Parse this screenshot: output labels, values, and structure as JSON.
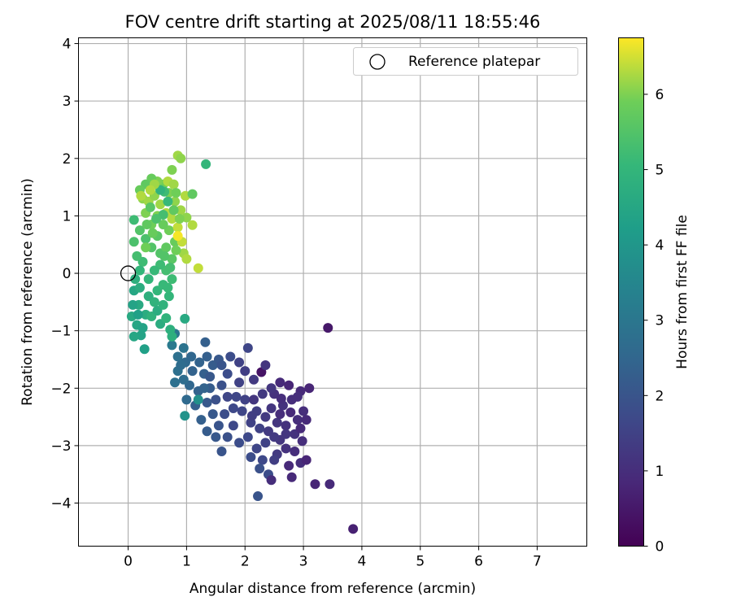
{
  "chart_data": {
    "type": "scatter",
    "title": "FOV centre drift starting at 2025/08/11 18:55:46",
    "xlabel": "Angular distance from reference (arcmin)",
    "ylabel": "Rotation from reference (arcmin)",
    "xlim": [
      -0.85,
      7.85
    ],
    "ylim": [
      -4.75,
      4.1
    ],
    "xticks": [
      0,
      1,
      2,
      3,
      4,
      5,
      6,
      7
    ],
    "yticks": [
      -4,
      -3,
      -2,
      -1,
      0,
      1,
      2,
      3,
      4
    ],
    "grid": true,
    "legend": {
      "placement": "top-right",
      "entries": [
        "Reference platepar"
      ]
    },
    "reference_point": {
      "x": 0.0,
      "y": 0.0,
      "label": "Reference platepar"
    },
    "colorbar": {
      "label": "Hours from first FF file",
      "colormap": "viridis",
      "range": [
        0,
        6.75
      ],
      "ticks": [
        0,
        1,
        2,
        3,
        4,
        5,
        6
      ]
    },
    "points": [
      [
        3.85,
        -4.45,
        0.7
      ],
      [
        3.42,
        -0.95,
        0.5
      ],
      [
        3.2,
        -3.67,
        0.8
      ],
      [
        3.45,
        -3.67,
        0.9
      ],
      [
        2.28,
        -1.72,
        0.4
      ],
      [
        2.22,
        -3.88,
        2.0
      ],
      [
        2.98,
        -2.92,
        1.0
      ],
      [
        2.95,
        -3.3,
        1.0
      ],
      [
        2.75,
        -3.35,
        0.9
      ],
      [
        2.85,
        -3.1,
        1.0
      ],
      [
        2.7,
        -3.05,
        1.1
      ],
      [
        2.6,
        -2.9,
        1.2
      ],
      [
        2.9,
        -2.55,
        1.0
      ],
      [
        3.0,
        -2.4,
        1.0
      ],
      [
        2.95,
        -2.05,
        0.9
      ],
      [
        2.8,
        -2.2,
        1.0
      ],
      [
        2.75,
        -1.95,
        0.8
      ],
      [
        2.65,
        -2.3,
        1.1
      ],
      [
        2.5,
        -2.1,
        1.1
      ],
      [
        2.45,
        -2.35,
        1.2
      ],
      [
        2.55,
        -2.6,
        1.2
      ],
      [
        2.4,
        -2.75,
        1.3
      ],
      [
        2.35,
        -2.5,
        1.3
      ],
      [
        2.2,
        -2.4,
        1.4
      ],
      [
        2.3,
        -2.1,
        1.3
      ],
      [
        2.15,
        -1.85,
        1.3
      ],
      [
        2.0,
        -1.7,
        1.4
      ],
      [
        2.05,
        -1.3,
        1.6
      ],
      [
        1.9,
        -1.9,
        1.5
      ],
      [
        1.85,
        -2.15,
        1.6
      ],
      [
        1.95,
        -2.4,
        1.6
      ],
      [
        2.1,
        -2.6,
        1.5
      ],
      [
        2.05,
        -2.85,
        1.7
      ],
      [
        2.2,
        -3.05,
        1.6
      ],
      [
        2.3,
        -3.25,
        1.7
      ],
      [
        2.4,
        -3.5,
        1.8
      ],
      [
        2.25,
        -3.4,
        1.9
      ],
      [
        2.55,
        -3.15,
        1.3
      ],
      [
        2.7,
        -2.65,
        1.1
      ],
      [
        2.85,
        -2.8,
        1.1
      ],
      [
        2.6,
        -1.9,
        0.9
      ],
      [
        2.35,
        -1.6,
        1.2
      ],
      [
        1.75,
        -1.45,
        1.8
      ],
      [
        1.7,
        -1.75,
        1.8
      ],
      [
        1.6,
        -1.95,
        1.9
      ],
      [
        1.5,
        -2.2,
        1.9
      ],
      [
        1.65,
        -2.45,
        1.8
      ],
      [
        1.8,
        -2.65,
        1.7
      ],
      [
        1.7,
        -2.85,
        1.9
      ],
      [
        1.9,
        -2.95,
        1.8
      ],
      [
        1.55,
        -2.65,
        2.0
      ],
      [
        1.45,
        -2.45,
        2.1
      ],
      [
        1.35,
        -2.25,
        2.1
      ],
      [
        1.4,
        -2.0,
        2.2
      ],
      [
        1.3,
        -1.75,
        2.3
      ],
      [
        1.45,
        -1.6,
        2.2
      ],
      [
        1.55,
        -1.5,
        2.1
      ],
      [
        1.35,
        -1.45,
        2.3
      ],
      [
        1.22,
        -1.55,
        2.4
      ],
      [
        1.1,
        -1.7,
        2.4
      ],
      [
        1.05,
        -1.95,
        2.5
      ],
      [
        1.2,
        -2.05,
        2.4
      ],
      [
        1.15,
        -2.3,
        2.3
      ],
      [
        1.0,
        -2.2,
        2.6
      ],
      [
        0.95,
        -1.85,
        2.7
      ],
      [
        0.85,
        -1.7,
        2.8
      ],
      [
        0.85,
        -1.45,
        2.8
      ],
      [
        0.95,
        -1.3,
        2.9
      ],
      [
        0.8,
        -1.05,
        3.0
      ],
      [
        0.75,
        -1.25,
        3.1
      ],
      [
        0.8,
        -1.9,
        2.8
      ],
      [
        1.32,
        -1.2,
        2.3
      ],
      [
        0.98,
        -1.55,
        2.6
      ],
      [
        1.08,
        -1.45,
        2.5
      ],
      [
        0.9,
        -1.6,
        2.7
      ],
      [
        1.25,
        -2.55,
        2.3
      ],
      [
        1.35,
        -2.75,
        2.2
      ],
      [
        1.5,
        -2.85,
        2.1
      ],
      [
        1.6,
        -3.1,
        2.0
      ],
      [
        2.1,
        -3.2,
        1.8
      ],
      [
        2.45,
        -3.6,
        1.0
      ],
      [
        2.8,
        -3.55,
        0.9
      ],
      [
        3.05,
        -3.25,
        0.8
      ],
      [
        2.6,
        -2.45,
        1.0
      ],
      [
        2.45,
        -2.0,
        1.2
      ],
      [
        2.95,
        -2.7,
        0.9
      ],
      [
        3.05,
        -2.55,
        0.9
      ],
      [
        2.7,
        -2.8,
        1.2
      ],
      [
        2.5,
        -3.25,
        1.4
      ],
      [
        2.35,
        -2.95,
        1.5
      ],
      [
        2.0,
        -2.2,
        1.5
      ],
      [
        1.8,
        -2.35,
        1.7
      ],
      [
        1.7,
        -2.15,
        1.6
      ],
      [
        2.15,
        -2.2,
        1.2
      ],
      [
        1.9,
        -1.55,
        1.5
      ],
      [
        1.6,
        -1.6,
        2.0
      ],
      [
        1.4,
        -1.8,
        2.1
      ],
      [
        1.3,
        -2.0,
        2.4
      ],
      [
        2.25,
        -2.7,
        1.5
      ],
      [
        2.12,
        -2.48,
        1.4
      ],
      [
        2.62,
        -2.18,
        1.0
      ],
      [
        2.78,
        -2.42,
        0.9
      ],
      [
        2.9,
        -2.15,
        1.0
      ],
      [
        3.1,
        -2.0,
        0.8
      ],
      [
        2.5,
        -2.85,
        1.3
      ],
      [
        1.2,
        -2.2,
        3.8
      ],
      [
        0.97,
        -2.48,
        3.9
      ],
      [
        0.97,
        -0.79,
        4.6
      ],
      [
        0.28,
        -1.32,
        4.3
      ],
      [
        0.22,
        -1.08,
        4.4
      ],
      [
        0.1,
        -1.1,
        4.5
      ],
      [
        0.15,
        -0.9,
        4.5
      ],
      [
        0.25,
        -0.95,
        4.4
      ],
      [
        0.3,
        -0.72,
        4.7
      ],
      [
        0.4,
        -0.75,
        4.9
      ],
      [
        0.55,
        -0.88,
        4.7
      ],
      [
        0.65,
        -0.78,
        4.9
      ],
      [
        0.72,
        -0.98,
        4.8
      ],
      [
        0.75,
        -1.1,
        4.8
      ],
      [
        0.18,
        -0.55,
        4.6
      ],
      [
        0.1,
        -0.3,
        4.5
      ],
      [
        0.2,
        -0.25,
        4.7
      ],
      [
        0.35,
        -0.4,
        4.8
      ],
      [
        0.45,
        -0.5,
        4.9
      ],
      [
        0.5,
        -0.3,
        5.0
      ],
      [
        0.6,
        -0.2,
        5.1
      ],
      [
        0.7,
        -0.4,
        5.0
      ],
      [
        0.75,
        -0.1,
        5.2
      ],
      [
        0.65,
        0.05,
        5.3
      ],
      [
        0.55,
        0.15,
        5.2
      ],
      [
        0.45,
        0.05,
        5.1
      ],
      [
        0.35,
        -0.1,
        5.0
      ],
      [
        0.25,
        0.2,
        5.2
      ],
      [
        0.15,
        0.3,
        5.3
      ],
      [
        0.1,
        0.55,
        5.4
      ],
      [
        0.1,
        0.93,
        5.2
      ],
      [
        0.2,
        0.75,
        5.5
      ],
      [
        0.3,
        0.6,
        5.4
      ],
      [
        0.4,
        0.45,
        5.5
      ],
      [
        0.5,
        0.65,
        5.6
      ],
      [
        0.55,
        0.35,
        5.5
      ],
      [
        0.65,
        0.45,
        5.7
      ],
      [
        0.75,
        0.25,
        5.6
      ],
      [
        0.8,
        0.55,
        5.8
      ],
      [
        0.7,
        0.75,
        5.9
      ],
      [
        0.6,
        0.85,
        5.8
      ],
      [
        0.5,
        1.0,
        6.0
      ],
      [
        0.4,
        0.85,
        5.9
      ],
      [
        0.3,
        1.05,
        6.0
      ],
      [
        0.25,
        1.3,
        6.1
      ],
      [
        0.35,
        1.25,
        6.2
      ],
      [
        0.45,
        1.35,
        6.1
      ],
      [
        0.55,
        1.2,
        6.2
      ],
      [
        0.65,
        1.05,
        6.3
      ],
      [
        0.75,
        0.95,
        6.3
      ],
      [
        0.85,
        0.8,
        6.4
      ],
      [
        0.9,
        1.1,
        6.2
      ],
      [
        0.8,
        1.25,
        6.1
      ],
      [
        0.7,
        1.4,
        6.0
      ],
      [
        0.6,
        1.55,
        5.9
      ],
      [
        0.5,
        1.6,
        6.0
      ],
      [
        0.4,
        1.65,
        5.8
      ],
      [
        0.3,
        1.55,
        5.7
      ],
      [
        0.2,
        1.45,
        5.8
      ],
      [
        0.22,
        1.35,
        6.3
      ],
      [
        0.85,
        2.05,
        6.2
      ],
      [
        0.9,
        2.0,
        6.1
      ],
      [
        0.75,
        1.8,
        6.0
      ],
      [
        0.68,
        1.6,
        6.3
      ],
      [
        0.78,
        1.55,
        6.2
      ],
      [
        0.82,
        1.4,
        5.9
      ],
      [
        0.98,
        1.35,
        6.3
      ],
      [
        1.1,
        1.38,
        5.7
      ],
      [
        1.33,
        1.9,
        5.0
      ],
      [
        1.0,
        0.97,
        6.1
      ],
      [
        1.1,
        0.84,
        6.3
      ],
      [
        0.92,
        0.55,
        6.4
      ],
      [
        0.95,
        0.35,
        6.2
      ],
      [
        1.0,
        0.25,
        6.3
      ],
      [
        0.85,
        0.65,
        6.7
      ],
      [
        1.2,
        0.09,
        6.4
      ],
      [
        0.62,
        1.42,
        5.2
      ],
      [
        0.55,
        1.45,
        4.9
      ],
      [
        0.68,
        1.25,
        5.1
      ],
      [
        0.6,
        1.02,
        5.3
      ],
      [
        0.48,
        0.95,
        5.4
      ],
      [
        0.38,
        1.15,
        5.6
      ],
      [
        0.32,
        0.85,
        5.7
      ],
      [
        0.42,
        0.7,
        5.8
      ],
      [
        0.3,
        0.45,
        5.9
      ],
      [
        0.2,
        0.05,
        5.0
      ],
      [
        0.12,
        -0.1,
        4.8
      ],
      [
        0.08,
        -0.55,
        4.4
      ],
      [
        0.06,
        -0.75,
        4.6
      ],
      [
        0.17,
        -0.72,
        4.3
      ],
      [
        0.5,
        -0.65,
        4.7
      ],
      [
        0.6,
        -0.55,
        4.9
      ],
      [
        0.68,
        -0.25,
        5.1
      ],
      [
        0.72,
        0.1,
        5.3
      ],
      [
        0.62,
        0.3,
        5.5
      ],
      [
        0.82,
        0.4,
        5.9
      ],
      [
        0.88,
        0.95,
        6.0
      ],
      [
        0.78,
        1.1,
        5.7
      ],
      [
        0.45,
        1.55,
        6.2
      ],
      [
        0.38,
        1.45,
        6.3
      ]
    ]
  }
}
